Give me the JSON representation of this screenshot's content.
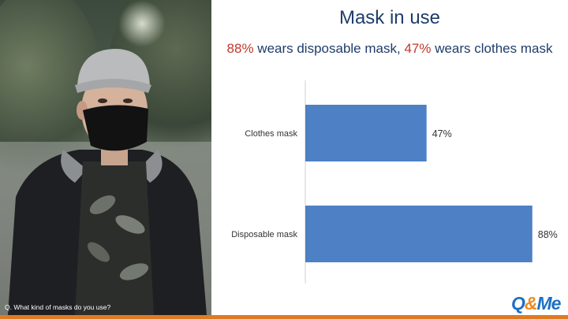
{
  "title": "Mask in use",
  "subtitle": {
    "pct1": "88%",
    "text1": " wears disposable mask, ",
    "pct2": "47%",
    "text2": " wears clothes mask"
  },
  "question": "Q. What kind of masks do you use?",
  "logo": {
    "part1": "Q",
    "amp": "&",
    "part2": "Me"
  },
  "colors": {
    "bar": "#4d80c4",
    "title": "#1f3d6b",
    "highlight": "#c0392b",
    "accent": "#e07a22"
  },
  "chart_data": {
    "type": "bar",
    "orientation": "horizontal",
    "categories": [
      "Clothes mask",
      "Disposable mask"
    ],
    "values": [
      47,
      88
    ],
    "value_labels": [
      "47%",
      "88%"
    ],
    "xlim": [
      0,
      100
    ],
    "title": "Mask in use",
    "xlabel": "",
    "ylabel": "",
    "grid": false,
    "legend": "none"
  }
}
